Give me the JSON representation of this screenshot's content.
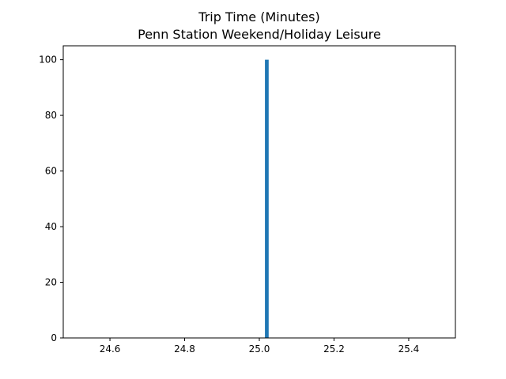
{
  "chart_data": {
    "type": "bar",
    "title": "Trip Time (Minutes)",
    "subtitle": "Penn Station Weekend/Holiday Leisure",
    "xlabel": "",
    "ylabel": "",
    "xlim": [
      24.475,
      25.525
    ],
    "ylim": [
      0,
      105
    ],
    "x_ticks": [
      24.6,
      24.8,
      25.0,
      25.2,
      25.4
    ],
    "x_tick_labels": [
      "24.6",
      "24.8",
      "25.0",
      "25.2",
      "25.4"
    ],
    "y_ticks": [
      0,
      20,
      40,
      60,
      80,
      100
    ],
    "y_tick_labels": [
      "0",
      "20",
      "40",
      "60",
      "80",
      "100"
    ],
    "bars": [
      {
        "x_start": 25.015,
        "x_end": 25.025,
        "value": 100
      }
    ],
    "bar_color": "#1f77b4",
    "grid": false,
    "legend": "none"
  }
}
